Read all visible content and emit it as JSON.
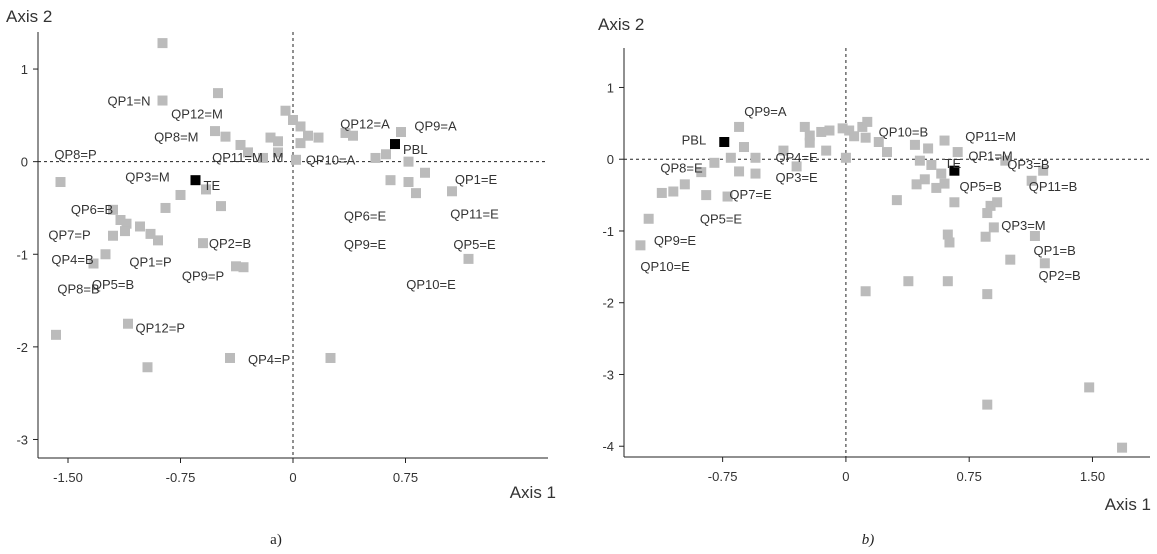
{
  "chart_data": [
    {
      "type": "scatter",
      "caption": "a)",
      "xlabel": "Axis 1",
      "ylabel": "Axis 2",
      "xlim": [
        -1.7,
        1.7
      ],
      "ylim": [
        -3.2,
        1.4
      ],
      "xticks": [
        -1.5,
        -0.75,
        0,
        0.75
      ],
      "xtick_labels": [
        "-1.50",
        "-0.75",
        "0",
        "0.75"
      ],
      "yticks": [
        1,
        0,
        -1,
        -2,
        -3
      ],
      "ytick_labels": [
        "1",
        "0",
        "-1",
        "-2",
        "-3"
      ],
      "highlight_color": "#000000",
      "point_color": "#bbbbbb",
      "highlighted": [
        {
          "x": 0.68,
          "y": 0.19,
          "label": "PBL"
        },
        {
          "x": -0.65,
          "y": -0.2,
          "label": "TE"
        }
      ],
      "points": [
        {
          "x": -0.87,
          "y": 1.28
        },
        {
          "x": -0.87,
          "y": 0.66
        },
        {
          "x": -0.5,
          "y": 0.74
        },
        {
          "x": -0.52,
          "y": 0.33
        },
        {
          "x": -0.45,
          "y": 0.27
        },
        {
          "x": -0.05,
          "y": 0.55
        },
        {
          "x": 0.0,
          "y": 0.45
        },
        {
          "x": 0.05,
          "y": 0.38
        },
        {
          "x": -0.15,
          "y": 0.26
        },
        {
          "x": -0.1,
          "y": 0.22
        },
        {
          "x": 0.1,
          "y": 0.28
        },
        {
          "x": 0.17,
          "y": 0.26
        },
        {
          "x": 0.35,
          "y": 0.31
        },
        {
          "x": 0.4,
          "y": 0.28
        },
        {
          "x": -0.35,
          "y": 0.18
        },
        {
          "x": -0.3,
          "y": 0.1
        },
        {
          "x": -0.2,
          "y": 0.04
        },
        {
          "x": -0.1,
          "y": 0.1
        },
        {
          "x": 0.02,
          "y": 0.02
        },
        {
          "x": 0.05,
          "y": 0.2
        },
        {
          "x": 0.72,
          "y": 0.32
        },
        {
          "x": 0.55,
          "y": 0.04
        },
        {
          "x": 0.62,
          "y": 0.08
        },
        {
          "x": 0.77,
          "y": 0.0
        },
        {
          "x": 0.88,
          "y": -0.12
        },
        {
          "x": 0.65,
          "y": -0.2
        },
        {
          "x": 0.77,
          "y": -0.22
        },
        {
          "x": 0.82,
          "y": -0.34
        },
        {
          "x": 1.06,
          "y": -0.32
        },
        {
          "x": 1.17,
          "y": -1.05
        },
        {
          "x": -1.55,
          "y": -0.22
        },
        {
          "x": -1.2,
          "y": -0.52
        },
        {
          "x": -1.15,
          "y": -0.63
        },
        {
          "x": -1.11,
          "y": -0.67
        },
        {
          "x": -1.02,
          "y": -0.7
        },
        {
          "x": -1.2,
          "y": -0.8
        },
        {
          "x": -1.12,
          "y": -0.75
        },
        {
          "x": -0.85,
          "y": -0.5
        },
        {
          "x": -0.75,
          "y": -0.36
        },
        {
          "x": -0.95,
          "y": -0.78
        },
        {
          "x": -0.9,
          "y": -0.85
        },
        {
          "x": -0.6,
          "y": -0.88
        },
        {
          "x": -0.48,
          "y": -0.48
        },
        {
          "x": -0.38,
          "y": -1.13
        },
        {
          "x": -0.33,
          "y": -1.14
        },
        {
          "x": -1.25,
          "y": -1.0
        },
        {
          "x": -1.33,
          "y": -1.1
        },
        {
          "x": -1.1,
          "y": -1.75
        },
        {
          "x": -1.58,
          "y": -1.87
        },
        {
          "x": -0.97,
          "y": -2.22
        },
        {
          "x": -0.42,
          "y": -2.12
        },
        {
          "x": 0.25,
          "y": -2.12
        },
        {
          "x": -0.58,
          "y": -0.3
        }
      ],
      "labels": [
        {
          "x": -0.95,
          "y": 0.65,
          "text": "QP1=N",
          "anchor": "end"
        },
        {
          "x": -0.64,
          "y": 0.51,
          "text": "QP12=M",
          "anchor": "middle"
        },
        {
          "x": -0.63,
          "y": 0.26,
          "text": "QP8=M",
          "anchor": "end"
        },
        {
          "x": 0.48,
          "y": 0.4,
          "text": "QP12=A",
          "anchor": "middle"
        },
        {
          "x": 0.95,
          "y": 0.38,
          "text": "QP9=A",
          "anchor": "middle"
        },
        {
          "x": -1.45,
          "y": 0.07,
          "text": "QP8=P",
          "anchor": "middle"
        },
        {
          "x": -0.37,
          "y": 0.04,
          "text": "QP11=M",
          "anchor": "middle"
        },
        {
          "x": -0.1,
          "y": 0.04,
          "text": "M",
          "anchor": "middle"
        },
        {
          "x": 0.25,
          "y": 0.01,
          "text": "QP10=A",
          "anchor": "middle"
        },
        {
          "x": 1.22,
          "y": -0.2,
          "text": "QP1=E",
          "anchor": "middle"
        },
        {
          "x": -0.97,
          "y": -0.17,
          "text": "QP3=M",
          "anchor": "middle"
        },
        {
          "x": -1.34,
          "y": -0.52,
          "text": "QP6=B",
          "anchor": "middle"
        },
        {
          "x": 0.48,
          "y": -0.59,
          "text": "QP6=E",
          "anchor": "middle"
        },
        {
          "x": 1.21,
          "y": -0.57,
          "text": "QP11=E",
          "anchor": "middle"
        },
        {
          "x": -1.49,
          "y": -0.8,
          "text": "QP7=P",
          "anchor": "middle"
        },
        {
          "x": -0.42,
          "y": -0.89,
          "text": "QP2=B",
          "anchor": "middle"
        },
        {
          "x": 0.48,
          "y": -0.9,
          "text": "QP9=E",
          "anchor": "middle"
        },
        {
          "x": 1.21,
          "y": -0.9,
          "text": "QP5=E",
          "anchor": "middle"
        },
        {
          "x": -1.47,
          "y": -1.06,
          "text": "QP4=B",
          "anchor": "middle"
        },
        {
          "x": -0.95,
          "y": -1.09,
          "text": "QP1=P",
          "anchor": "middle"
        },
        {
          "x": -0.6,
          "y": -1.24,
          "text": "QP9=P",
          "anchor": "middle"
        },
        {
          "x": -1.2,
          "y": -1.33,
          "text": "QP5=B",
          "anchor": "middle"
        },
        {
          "x": -1.43,
          "y": -1.38,
          "text": "QP8=B",
          "anchor": "middle"
        },
        {
          "x": 0.92,
          "y": -1.33,
          "text": "QP10=E",
          "anchor": "middle"
        },
        {
          "x": -1.05,
          "y": -1.8,
          "text": "QP12=P",
          "anchor": "start"
        },
        {
          "x": -0.3,
          "y": -2.14,
          "text": "QP4=P",
          "anchor": "start"
        }
      ]
    },
    {
      "type": "scatter",
      "caption": "b)",
      "xlabel": "Axis 1",
      "ylabel": "Axis 2",
      "xlim": [
        -1.35,
        1.85
      ],
      "ylim": [
        -4.15,
        1.55
      ],
      "xticks": [
        -0.75,
        0,
        0.75,
        1.5
      ],
      "xtick_labels": [
        "-0.75",
        "0",
        "0.75",
        "1.50"
      ],
      "yticks": [
        1,
        0,
        -1,
        -2,
        -3,
        -4
      ],
      "ytick_labels": [
        "1",
        "0",
        "-1",
        "-2",
        "-3",
        "-4"
      ],
      "highlight_color": "#000000",
      "point_color": "#bbbbbb",
      "highlighted": [
        {
          "x": -0.74,
          "y": 0.24,
          "label": "PBL"
        },
        {
          "x": 0.66,
          "y": -0.16,
          "label": "TE"
        }
      ],
      "points": [
        {
          "x": -0.65,
          "y": 0.45
        },
        {
          "x": -0.62,
          "y": 0.17
        },
        {
          "x": -0.55,
          "y": 0.02
        },
        {
          "x": -0.7,
          "y": 0.02
        },
        {
          "x": -0.8,
          "y": -0.05
        },
        {
          "x": -0.88,
          "y": -0.18
        },
        {
          "x": -0.65,
          "y": -0.17
        },
        {
          "x": -0.55,
          "y": -0.2
        },
        {
          "x": -0.3,
          "y": -0.1
        },
        {
          "x": -0.38,
          "y": 0.12
        },
        {
          "x": -0.22,
          "y": 0.33
        },
        {
          "x": -0.15,
          "y": 0.38
        },
        {
          "x": -0.25,
          "y": 0.45
        },
        {
          "x": -0.1,
          "y": 0.4
        },
        {
          "x": -0.02,
          "y": 0.43
        },
        {
          "x": 0.02,
          "y": 0.4
        },
        {
          "x": 0.05,
          "y": 0.32
        },
        {
          "x": 0.1,
          "y": 0.45
        },
        {
          "x": 0.13,
          "y": 0.52
        },
        {
          "x": 0.12,
          "y": 0.3
        },
        {
          "x": 0.2,
          "y": 0.24
        },
        {
          "x": 0.25,
          "y": 0.1
        },
        {
          "x": 0.0,
          "y": 0.02
        },
        {
          "x": -0.12,
          "y": 0.12
        },
        {
          "x": -0.22,
          "y": 0.23
        },
        {
          "x": 0.42,
          "y": 0.2
        },
        {
          "x": 0.5,
          "y": 0.15
        },
        {
          "x": 0.6,
          "y": 0.26
        },
        {
          "x": 0.68,
          "y": 0.1
        },
        {
          "x": 0.45,
          "y": -0.02
        },
        {
          "x": 0.52,
          "y": -0.08
        },
        {
          "x": 0.58,
          "y": -0.2
        },
        {
          "x": 0.48,
          "y": -0.28
        },
        {
          "x": 0.43,
          "y": -0.35
        },
        {
          "x": 0.6,
          "y": -0.34
        },
        {
          "x": 0.55,
          "y": -0.4
        },
        {
          "x": 0.66,
          "y": -0.6
        },
        {
          "x": 0.31,
          "y": -0.57
        },
        {
          "x": 0.88,
          "y": -0.65
        },
        {
          "x": 0.92,
          "y": -0.6
        },
        {
          "x": 0.86,
          "y": -0.75
        },
        {
          "x": 0.62,
          "y": -1.05
        },
        {
          "x": 0.63,
          "y": -1.16
        },
        {
          "x": 0.85,
          "y": -1.08
        },
        {
          "x": 1.15,
          "y": -1.07
        },
        {
          "x": 1.0,
          "y": -1.4
        },
        {
          "x": 1.21,
          "y": -1.45
        },
        {
          "x": 0.12,
          "y": -1.84
        },
        {
          "x": 0.38,
          "y": -1.7
        },
        {
          "x": 0.62,
          "y": -1.7
        },
        {
          "x": 0.86,
          "y": -1.88
        },
        {
          "x": 0.86,
          "y": -3.42
        },
        {
          "x": 1.48,
          "y": -3.18
        },
        {
          "x": 1.68,
          "y": -4.02
        },
        {
          "x": -0.98,
          "y": -0.35
        },
        {
          "x": -1.05,
          "y": -0.45
        },
        {
          "x": -1.12,
          "y": -0.47
        },
        {
          "x": -0.85,
          "y": -0.5
        },
        {
          "x": -1.2,
          "y": -0.83
        },
        {
          "x": -1.25,
          "y": -1.2
        },
        {
          "x": -0.72,
          "y": -0.52
        },
        {
          "x": 0.9,
          "y": -0.95
        },
        {
          "x": 1.13,
          "y": -0.3
        },
        {
          "x": 0.97,
          "y": -0.02
        },
        {
          "x": 1.2,
          "y": -0.16
        }
      ],
      "labels": [
        {
          "x": -0.49,
          "y": 0.66,
          "text": "QP9=A",
          "anchor": "middle"
        },
        {
          "x": 0.35,
          "y": 0.37,
          "text": "QP10=B",
          "anchor": "middle"
        },
        {
          "x": 0.88,
          "y": 0.31,
          "text": "QP11=M",
          "anchor": "middle"
        },
        {
          "x": 0.88,
          "y": 0.04,
          "text": "QP1=M",
          "anchor": "middle"
        },
        {
          "x": -0.85,
          "y": 0.26,
          "text": "PBL",
          "anchor": "end"
        },
        {
          "x": -0.3,
          "y": 0.02,
          "text": "QP4=E",
          "anchor": "middle"
        },
        {
          "x": -1.0,
          "y": -0.13,
          "text": "QP8=E",
          "anchor": "middle"
        },
        {
          "x": 1.11,
          "y": -0.08,
          "text": "QP3=B",
          "anchor": "middle"
        },
        {
          "x": 0.6,
          "y": -0.07,
          "text": "TE",
          "anchor": "start"
        },
        {
          "x": -0.3,
          "y": -0.26,
          "text": "QP3=E",
          "anchor": "middle"
        },
        {
          "x": 0.82,
          "y": -0.39,
          "text": "QP5=B",
          "anchor": "middle"
        },
        {
          "x": 1.26,
          "y": -0.39,
          "text": "QP11=B",
          "anchor": "middle"
        },
        {
          "x": -0.58,
          "y": -0.5,
          "text": "QP7=E",
          "anchor": "middle"
        },
        {
          "x": -0.76,
          "y": -0.84,
          "text": "QP5=E",
          "anchor": "middle"
        },
        {
          "x": 1.08,
          "y": -0.93,
          "text": "QP3=M",
          "anchor": "middle"
        },
        {
          "x": -1.04,
          "y": -1.14,
          "text": "QP9=E",
          "anchor": "middle"
        },
        {
          "x": 1.27,
          "y": -1.28,
          "text": "QP1=B",
          "anchor": "middle"
        },
        {
          "x": -1.1,
          "y": -1.5,
          "text": "QP10=E",
          "anchor": "middle"
        },
        {
          "x": 1.3,
          "y": -1.63,
          "text": "QP2=B",
          "anchor": "middle"
        }
      ]
    }
  ]
}
